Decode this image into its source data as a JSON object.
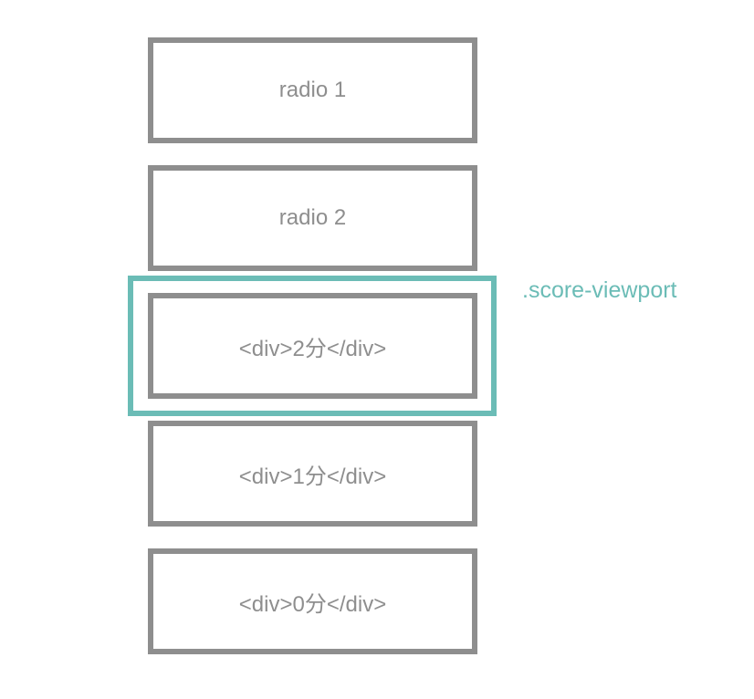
{
  "colors": {
    "box_border": "#8e8e8e",
    "box_text": "#8e8e8e",
    "viewport_accent": "#6bbcb6",
    "background": "#ffffff"
  },
  "boxes": [
    {
      "label": "radio 1"
    },
    {
      "label": "radio 2"
    },
    {
      "label": "<div>2分</div>"
    },
    {
      "label": "<div>1分</div>"
    },
    {
      "label": "<div>0分</div>"
    }
  ],
  "viewport": {
    "label": ".score-viewport"
  }
}
